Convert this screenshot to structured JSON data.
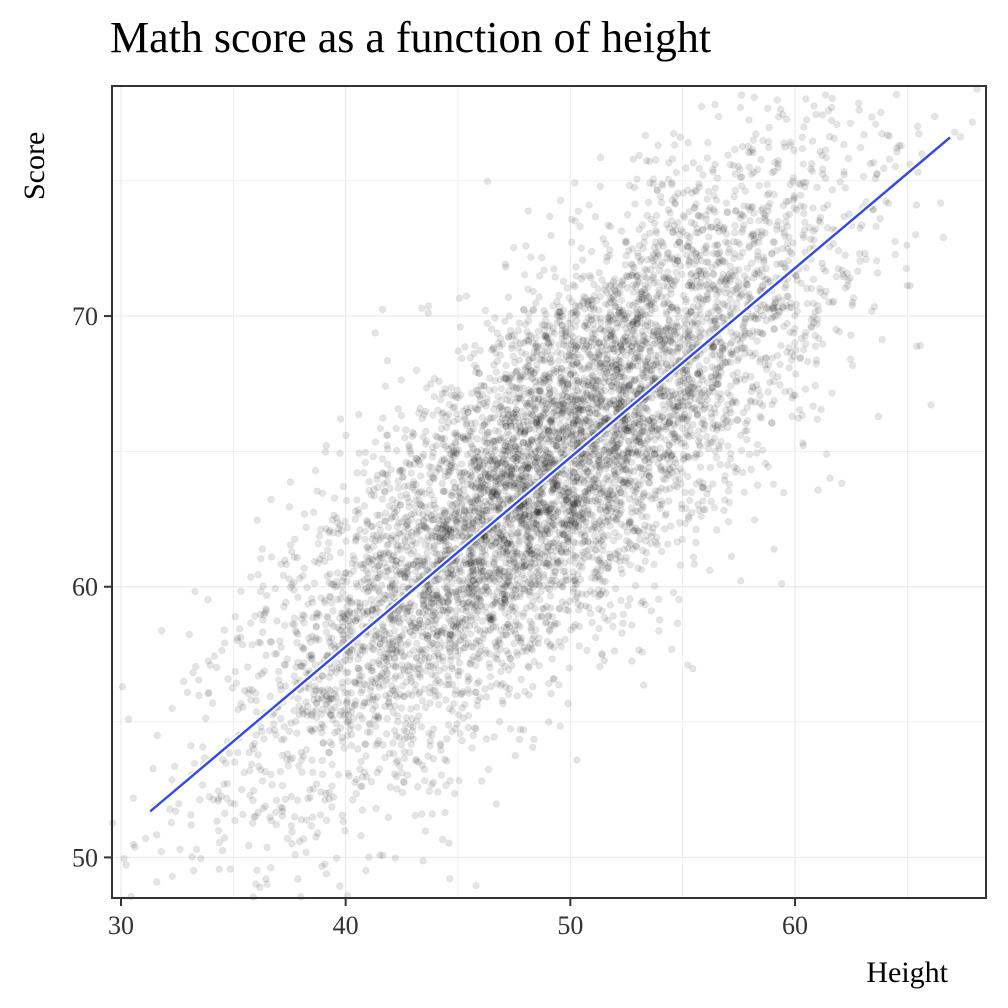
{
  "chart_data": {
    "type": "scatter",
    "title": "Math score as a function of height",
    "xlabel": "Height",
    "ylabel": "Score",
    "xlim": [
      29.6,
      68.5
    ],
    "ylim": [
      48.5,
      78.5
    ],
    "x_ticks": [
      30,
      40,
      50,
      60
    ],
    "y_ticks": [
      50,
      60,
      70
    ],
    "grid": true,
    "point_color": "#000000",
    "line_color": "#3049e8",
    "point_distribution": {
      "count": 7000,
      "x_mean": 49.0,
      "x_sd": 6.3,
      "y_mean": 64.2,
      "y_sd": 5.6,
      "correlation": 0.8
    },
    "trend_line": {
      "x": [
        31.3,
        66.9
      ],
      "y": [
        51.7,
        76.6
      ]
    }
  }
}
